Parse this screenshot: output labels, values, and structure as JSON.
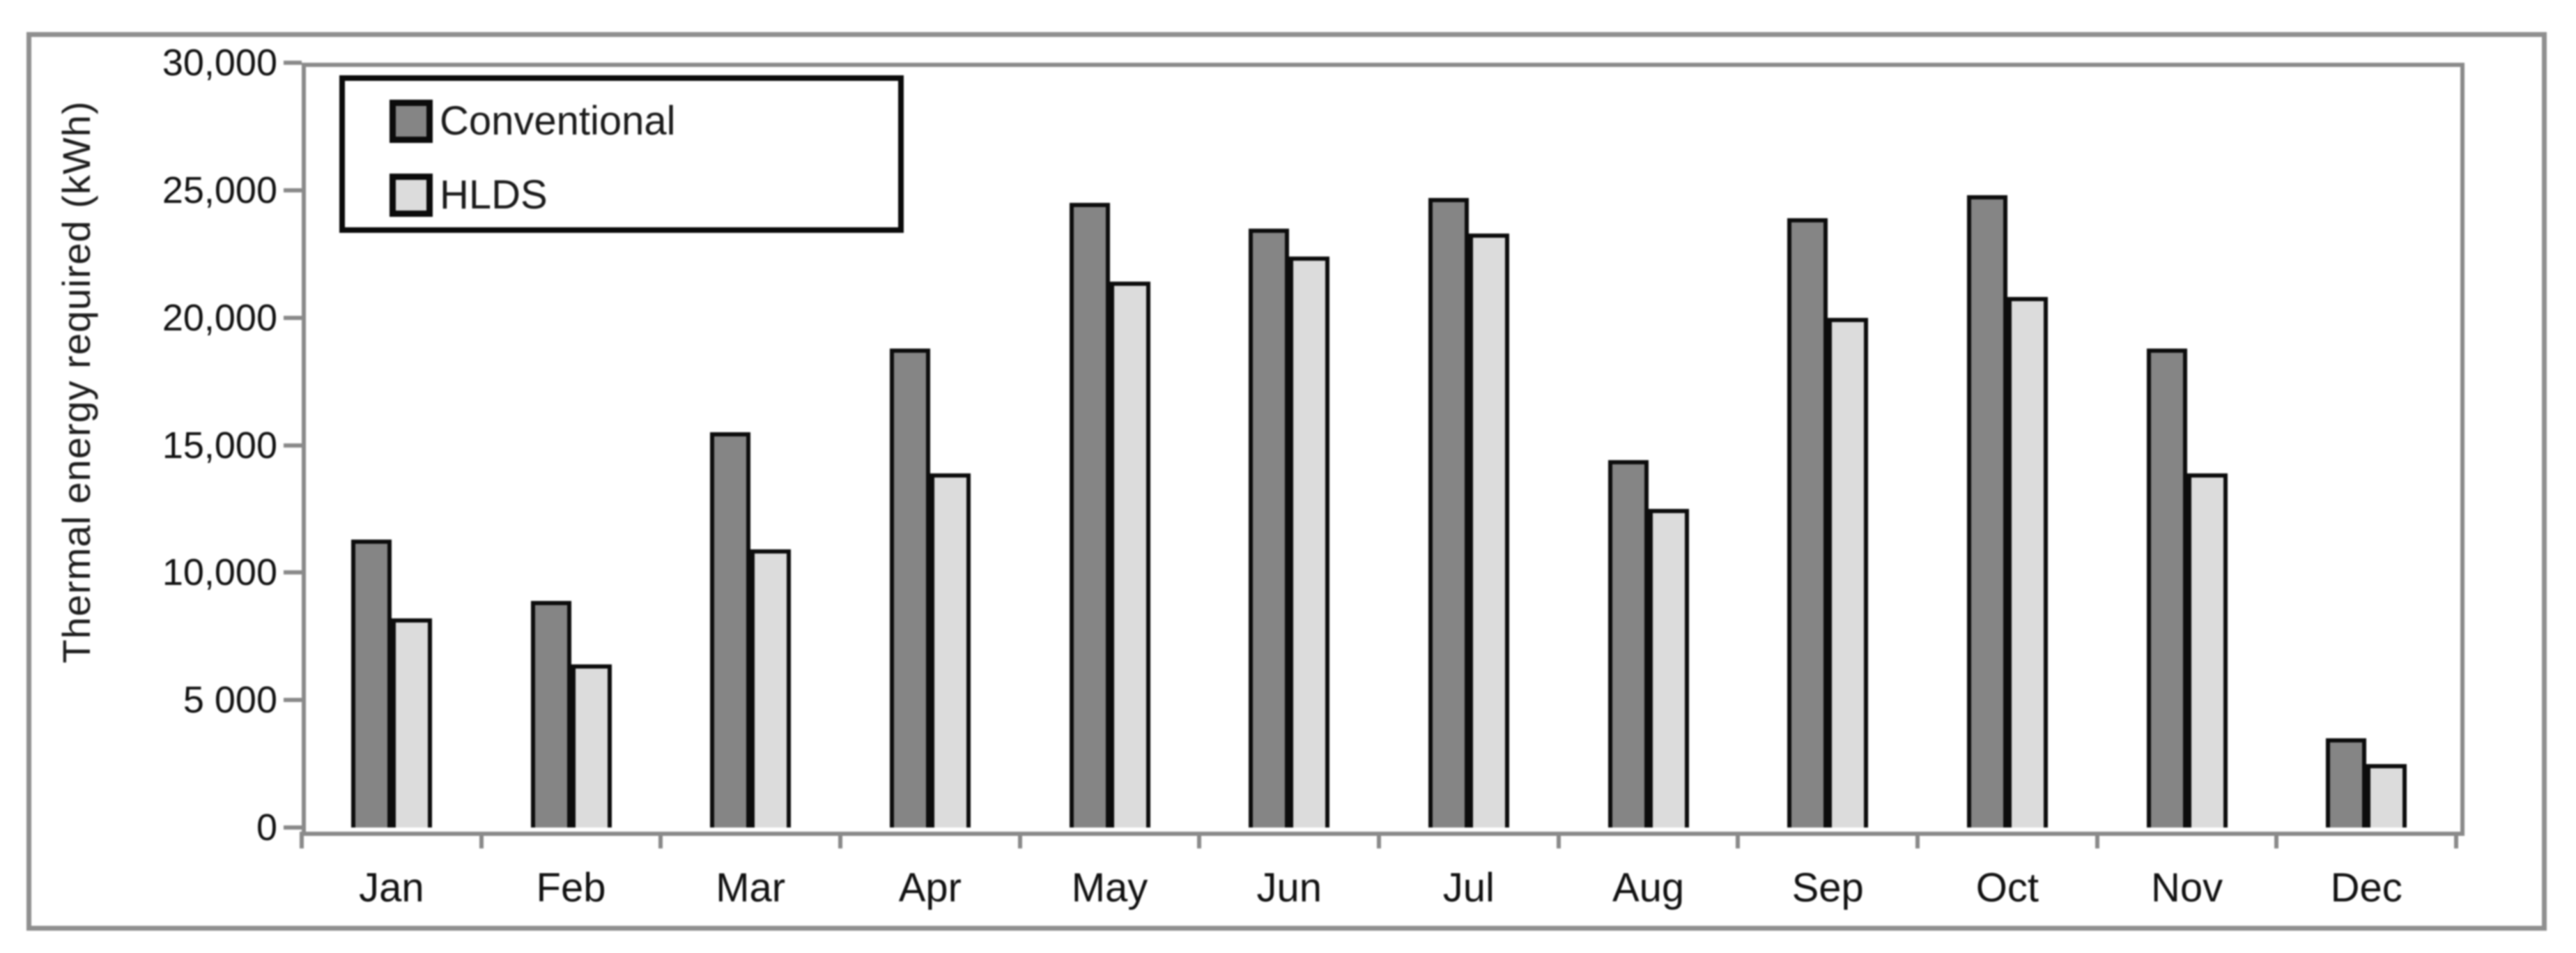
{
  "figure": {
    "background": "#ffffff",
    "outer_border_color": "#8f8f8f",
    "axis_color": "#8a8a8a",
    "text_color": "#111111",
    "bar_outline_color": "#0c0c0c"
  },
  "chart_data": {
    "type": "bar",
    "title": "",
    "xlabel": "",
    "ylabel": "Thermal energy required (kWh)",
    "categories": [
      "Jan",
      "Feb",
      "Mar",
      "Apr",
      "May",
      "Jun",
      "Jul",
      "Aug",
      "Sep",
      "Oct",
      "Nov",
      "Dec"
    ],
    "series": [
      {
        "name": "Conventional",
        "color": "#858585",
        "values": [
          11300,
          8900,
          15500,
          18800,
          24500,
          23500,
          24700,
          14400,
          23900,
          24800,
          18800,
          3500
        ]
      },
      {
        "name": "HLDS",
        "color": "#dcdcdc",
        "values": [
          8200,
          6400,
          10900,
          13900,
          21400,
          22400,
          23300,
          12500,
          20000,
          20800,
          13900,
          2500
        ]
      }
    ],
    "ylim": [
      0,
      30000
    ],
    "ytick_interval": 5000,
    "ytick_labels": [
      "30,000",
      "25,000",
      "20,000",
      "15,000",
      "10,000",
      "5 000",
      "0"
    ],
    "grid": false,
    "legend_position": "top-left-inside"
  }
}
